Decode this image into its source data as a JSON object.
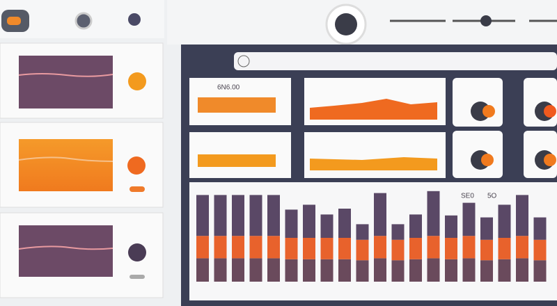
{
  "header": {
    "card_label_1": "6N6.00",
    "card_label_2": "SE0",
    "card_label_3": "5O"
  },
  "chart_data": {
    "type": "bar",
    "stacked": true,
    "ylim": [
      0,
      100
    ],
    "series": [
      {
        "color": "#6a4a5c",
        "values": [
          24,
          24,
          24,
          24,
          24,
          23,
          23,
          23,
          23,
          22,
          24,
          22,
          23,
          24,
          23,
          24,
          22,
          23,
          24,
          22
        ]
      },
      {
        "color": "#e8622c",
        "values": [
          23,
          23,
          23,
          23,
          23,
          22,
          22,
          22,
          22,
          21,
          23,
          21,
          22,
          23,
          22,
          23,
          21,
          22,
          23,
          21
        ]
      },
      {
        "color": "#5a4866",
        "values": [
          42,
          42,
          42,
          42,
          42,
          29,
          34,
          24,
          30,
          16,
          44,
          16,
          24,
          46,
          23,
          34,
          23,
          34,
          42,
          23
        ]
      }
    ]
  }
}
